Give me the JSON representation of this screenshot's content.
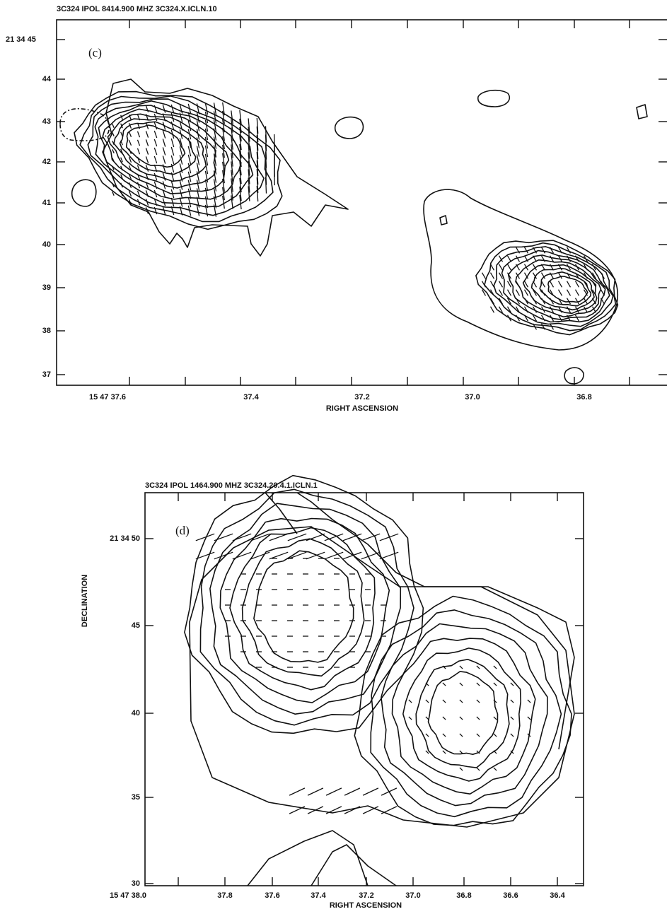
{
  "panels": [
    {
      "header": "3C324    IPOL   8414.900 MHZ   3C324.X.ICLN.10",
      "label": "(c)",
      "yticks": [
        "21 34 45",
        "44",
        "43",
        "42",
        "41",
        "40",
        "39",
        "38",
        "37"
      ],
      "xticks": [
        "15 47 37.6",
        "37.4",
        "37.2",
        "37.0",
        "36.8"
      ],
      "xlabel": "RIGHT ASCENSION"
    },
    {
      "header": "3C324    IPOL   1464.900 MHZ   3C324.20.4.1.ICLN.1",
      "label": "(d)",
      "yticks": [
        "21 34 50",
        "45",
        "40",
        "35",
        "30"
      ],
      "xticks": [
        "15 47 38.0",
        "37.8",
        "37.6",
        "37.4",
        "37.2",
        "37.0",
        "36.8",
        "36.6",
        "36.4"
      ],
      "xlabel": "RIGHT ASCENSION",
      "ylabel": "DECLINATION"
    }
  ]
}
